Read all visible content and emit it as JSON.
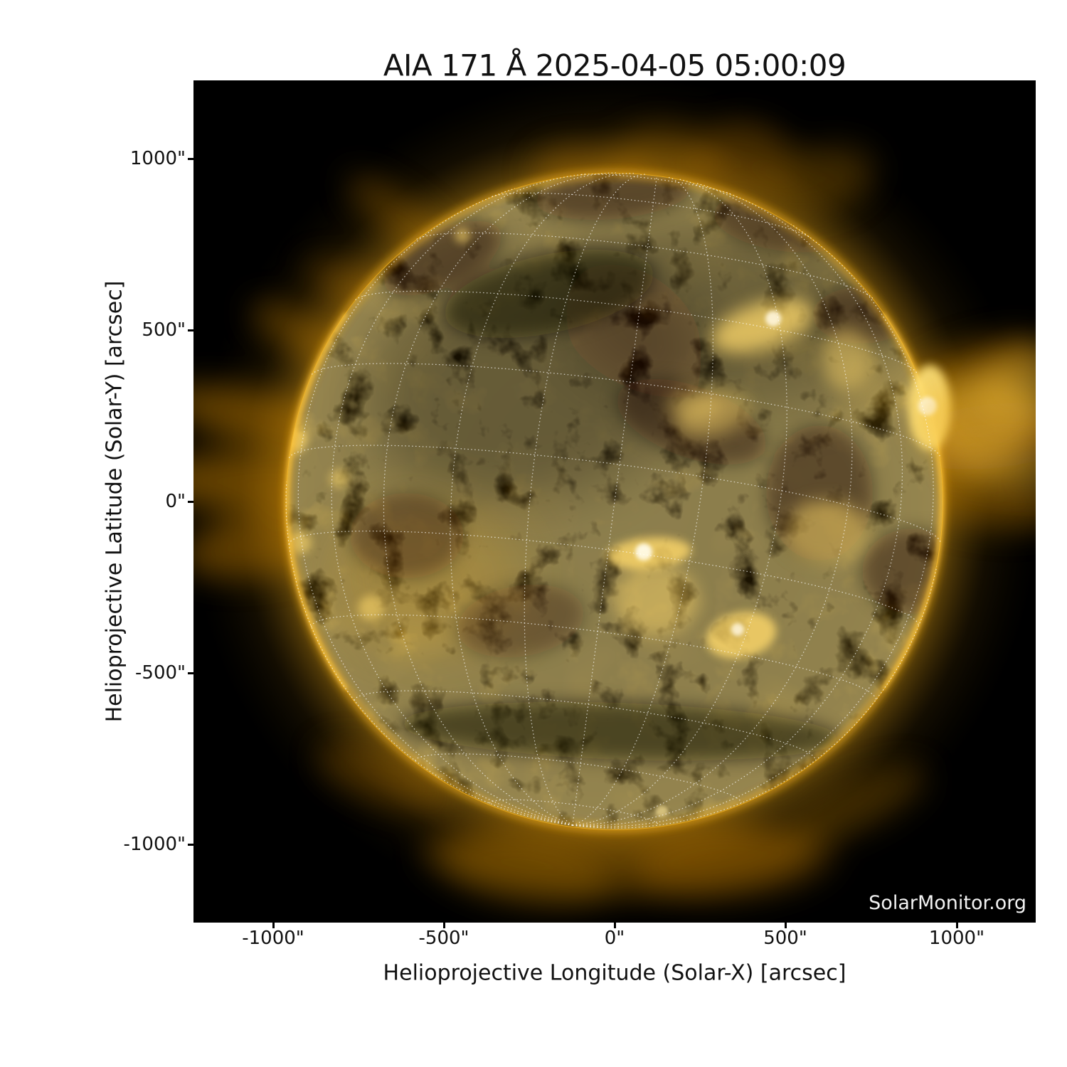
{
  "figure": {
    "title": "AIA 171 Å 2025-04-05 05:00:09",
    "watermark": "SolarMonitor.org",
    "xlabel": "Helioprojective Longitude (Solar-X) [arcsec]",
    "ylabel": "Helioprojective Latitude (Solar-Y) [arcsec]",
    "x_ticks": [
      "-1000\"",
      "-500\"",
      "0\"",
      "500\"",
      "1000\""
    ],
    "y_ticks": [
      "1000\"",
      "500\"",
      "0\"",
      "-500\"",
      "-1000\""
    ]
  },
  "chart_data": {
    "type": "heatmap",
    "title": "AIA 171 Å 2025-04-05 05:00:09",
    "instrument": "AIA",
    "wavelength": "171 Å",
    "observed": "2025-04-05 05:00:09",
    "xlabel": "Helioprojective Longitude (Solar-X) [arcsec]",
    "ylabel": "Helioprojective Latitude (Solar-Y) [arcsec]",
    "xlim": [
      -1228,
      1228
    ],
    "ylim": [
      -1228,
      1228
    ],
    "x_tick_values": [
      -1000,
      -500,
      0,
      500,
      1000
    ],
    "y_tick_values": [
      1000,
      500,
      0,
      -500,
      -1000
    ],
    "grid": "heliographic lat/lon overlay, 15° spacing, white dotted, south pole visible near lower limb",
    "solar_disk": {
      "center_arcsec": [
        0,
        0
      ],
      "radius_arcsec": 960,
      "background": "black"
    },
    "palette": {
      "background": "#000000",
      "corona_faint": "#3a2603",
      "disk_mid": "#8d6410",
      "bright_gold": "#f0a818",
      "rim": "#f7b01e",
      "core_white": "#fff6d8",
      "grid": "#ffffff",
      "watermark_text": "#f2f2f2",
      "axis_text": "#111111"
    },
    "features": [
      {
        "type": "bright_active_region",
        "x_arcsec": 920,
        "y_arcsec": 275,
        "note": "very bright AR at W limb with loop fan extending beyond limb"
      },
      {
        "type": "bright_active_region",
        "x_arcsec": 440,
        "y_arcsec": 525,
        "note": "bright loop system NW quadrant"
      },
      {
        "type": "bright_active_region",
        "x_arcsec": 85,
        "y_arcsec": -145,
        "note": "compact bright AR south of disk center with loop arcade"
      },
      {
        "type": "bright_active_region",
        "x_arcsec": 365,
        "y_arcsec": -385,
        "note": "bright loop bundle SE of center"
      },
      {
        "type": "bright_region",
        "x_arcsec": 595,
        "y_arcsec": -95,
        "note": "diffuse bright fan"
      },
      {
        "type": "bright_point",
        "x_arcsec": -945,
        "y_arcsec": 180,
        "note": "bright points along E limb"
      },
      {
        "type": "bright_point",
        "x_arcsec": -715,
        "y_arcsec": -310,
        "note": "bright patch SE quadrant near limb"
      },
      {
        "type": "dark_filament_channel",
        "x_arcsec": -195,
        "y_arcsec": 570,
        "note": "large dark channel complex N-central disk"
      },
      {
        "type": "dark_band",
        "x_arcsec": -10,
        "y_arcsec": -675,
        "note": "dark east-west band across southern disk"
      },
      {
        "type": "dark_region",
        "x_arcsec": 740,
        "y_arcsec": -175,
        "note": "dark patches W of center"
      },
      {
        "type": "coronal_streamers",
        "x_arcsec": -1100,
        "y_arcsec": 200,
        "note": "bright streamer fan off E limb"
      },
      {
        "type": "coronal_streamers",
        "x_arcsec": 1100,
        "y_arcsec": 300,
        "note": "loop fan off W limb"
      },
      {
        "type": "polar_plumes",
        "x_arcsec": 0,
        "y_arcsec": 1050,
        "note": "faint plumes above N limb"
      },
      {
        "type": "polar_plumes",
        "x_arcsec": 0,
        "y_arcsec": -1080,
        "note": "faint glow below S limb"
      }
    ],
    "legend": "none"
  }
}
